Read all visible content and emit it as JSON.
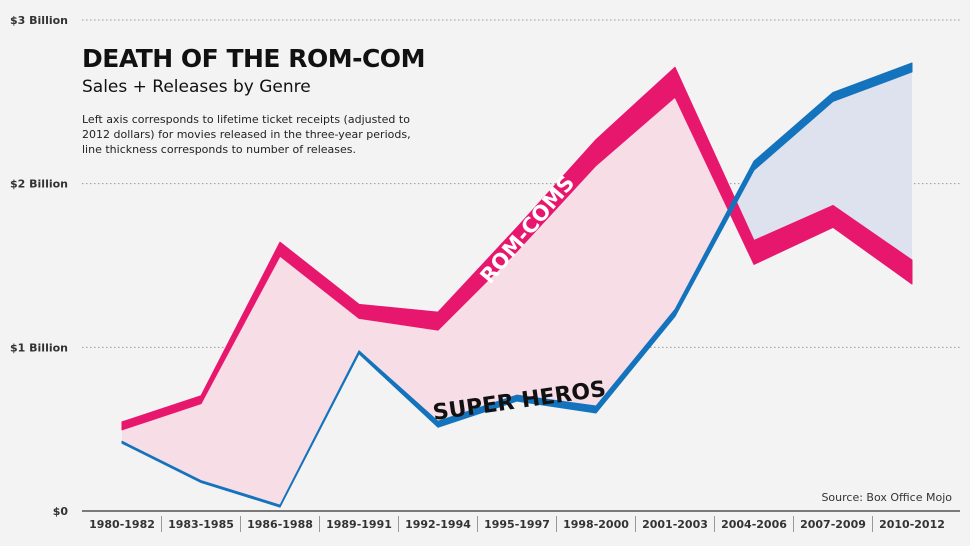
{
  "header": {
    "title": "DEATH OF THE ROM-COM",
    "subtitle": "Sales + Releases by Genre",
    "description": "Left axis corresponds to lifetime ticket receipts (adjusted to 2012 dollars) for movies released in the three-year periods, line thickness corresponds to number of releases."
  },
  "source": "Source: Box Office Mojo",
  "chart_data": {
    "type": "line",
    "categories": [
      "1980-1982",
      "1983-1985",
      "1986-1988",
      "1989-1991",
      "1992-1994",
      "1995-1997",
      "1998-2000",
      "2001-2003",
      "2004-2006",
      "2007-2009",
      "2010-2012"
    ],
    "ylim": [
      0,
      3
    ],
    "yticks": [
      {
        "value": 0,
        "label": "$0"
      },
      {
        "value": 1,
        "label": "$1 Billion"
      },
      {
        "value": 2,
        "label": "$2 Billion"
      },
      {
        "value": 3,
        "label": "$3 Billion"
      }
    ],
    "grid": true,
    "series": [
      {
        "name": "ROM-COMS",
        "color": "#e8176e",
        "fill": "#f6dde6",
        "values": [
          0.52,
          0.68,
          1.6,
          1.22,
          1.16,
          1.66,
          2.19,
          2.62,
          1.58,
          1.8,
          1.46
        ],
        "thickness": [
          8,
          8,
          14,
          14,
          18,
          24,
          26,
          30,
          24,
          22,
          24
        ]
      },
      {
        "name": "SUPER HEROS",
        "color": "#1473bd",
        "fill": "#dde2ee",
        "values": [
          0.42,
          0.18,
          0.03,
          0.97,
          0.53,
          0.69,
          0.62,
          1.21,
          2.11,
          2.53,
          2.71
        ],
        "thickness": [
          2,
          2,
          2,
          3,
          6,
          6,
          7,
          7,
          9,
          9,
          9
        ]
      }
    ]
  }
}
